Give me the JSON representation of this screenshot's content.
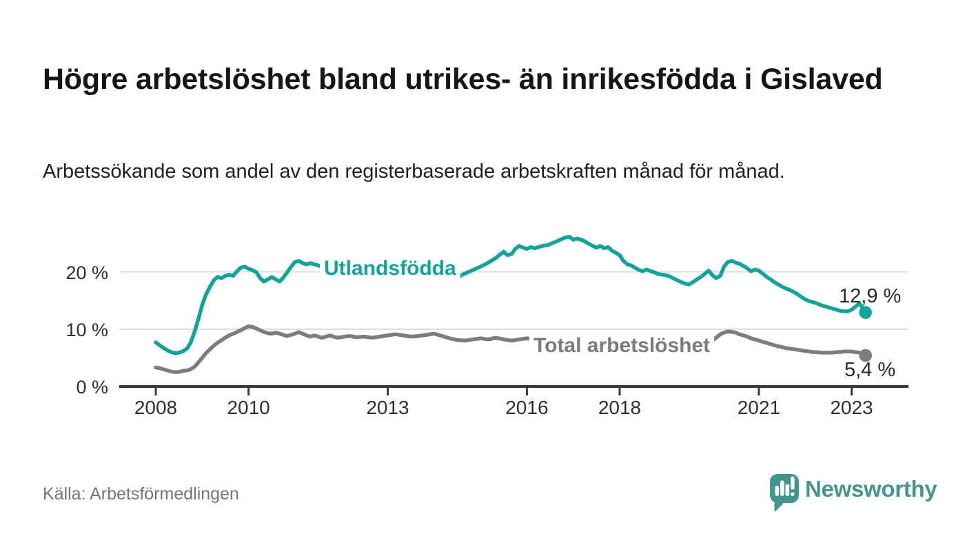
{
  "header": {
    "title": "Högre arbetslöshet bland utrikes- än inrikesfödda i Gislaved",
    "subtitle": "Arbetssökande som andel av den registerbaserade arbetskraften månad för månad."
  },
  "footer": {
    "source": "Källa: Arbetsförmedlingen",
    "brand": {
      "name": "Newsworthy",
      "icon": "speech-bubble-bar-chart-icon",
      "color": "#43968f"
    }
  },
  "colors": {
    "accent_teal": "#12a39a",
    "series_gray": "#7d7d7d",
    "axis": "#3a3a3a",
    "grid": "#dcdcdc",
    "text_dark": "#161616",
    "brand_teal": "#43968f"
  },
  "chart_data": {
    "type": "line",
    "x_unit": "decimal_year",
    "xlim": [
      2007.2,
      2024.2
    ],
    "ylim": [
      0,
      27
    ],
    "grid": "horizontal-only",
    "legend_position": "inline-labels",
    "yticks": [
      {
        "value": 0,
        "label": "0 %"
      },
      {
        "value": 10,
        "label": "10 %"
      },
      {
        "value": 20,
        "label": "20 %"
      }
    ],
    "xticks": [
      {
        "value": 2008,
        "label": "2008"
      },
      {
        "value": 2010,
        "label": "2010"
      },
      {
        "value": 2013,
        "label": "2013"
      },
      {
        "value": 2016,
        "label": "2016"
      },
      {
        "value": 2018,
        "label": "2018"
      },
      {
        "value": 2021,
        "label": "2021"
      },
      {
        "value": 2023,
        "label": "2023"
      }
    ],
    "series": [
      {
        "name": "Utlandsfödda",
        "color": "#12a39a",
        "end_label": "12,9 %",
        "end_value": 12.9,
        "points": [
          [
            2008.0,
            7.7
          ],
          [
            2008.08,
            7.2
          ],
          [
            2008.17,
            6.7
          ],
          [
            2008.25,
            6.3
          ],
          [
            2008.33,
            6.0
          ],
          [
            2008.42,
            5.8
          ],
          [
            2008.5,
            5.9
          ],
          [
            2008.58,
            6.1
          ],
          [
            2008.67,
            6.6
          ],
          [
            2008.75,
            7.6
          ],
          [
            2008.83,
            9.4
          ],
          [
            2008.92,
            11.8
          ],
          [
            2009.0,
            14.2
          ],
          [
            2009.08,
            16.0
          ],
          [
            2009.17,
            17.4
          ],
          [
            2009.25,
            18.5
          ],
          [
            2009.33,
            19.1
          ],
          [
            2009.42,
            18.9
          ],
          [
            2009.5,
            19.3
          ],
          [
            2009.58,
            19.5
          ],
          [
            2009.67,
            19.3
          ],
          [
            2009.75,
            20.1
          ],
          [
            2009.83,
            20.7
          ],
          [
            2009.92,
            20.9
          ],
          [
            2010.0,
            20.5
          ],
          [
            2010.08,
            20.3
          ],
          [
            2010.17,
            19.9
          ],
          [
            2010.25,
            18.9
          ],
          [
            2010.33,
            18.3
          ],
          [
            2010.42,
            18.7
          ],
          [
            2010.5,
            19.1
          ],
          [
            2010.58,
            18.7
          ],
          [
            2010.67,
            18.3
          ],
          [
            2010.75,
            19.0
          ],
          [
            2010.83,
            19.9
          ],
          [
            2010.92,
            20.9
          ],
          [
            2011.0,
            21.7
          ],
          [
            2011.08,
            21.9
          ],
          [
            2011.17,
            21.5
          ],
          [
            2011.25,
            21.3
          ],
          [
            2011.33,
            21.5
          ],
          [
            2011.42,
            21.3
          ],
          [
            2011.5,
            21.1
          ],
          [
            2011.58,
            20.9
          ],
          [
            2011.67,
            21.0
          ],
          [
            2011.75,
            20.9
          ],
          [
            2012.0,
            20.6
          ],
          [
            2012.25,
            20.8
          ],
          [
            2012.5,
            20.4
          ],
          [
            2012.75,
            20.6
          ],
          [
            2013.0,
            20.3
          ],
          [
            2013.25,
            20.5
          ],
          [
            2013.5,
            20.2
          ],
          [
            2013.75,
            20.3
          ],
          [
            2014.0,
            20.0
          ],
          [
            2014.17,
            19.6
          ],
          [
            2014.33,
            19.1
          ],
          [
            2014.5,
            18.7
          ],
          [
            2014.58,
            19.4
          ],
          [
            2014.67,
            19.7
          ],
          [
            2014.75,
            20.0
          ],
          [
            2014.83,
            20.3
          ],
          [
            2014.92,
            20.6
          ],
          [
            2015.0,
            20.9
          ],
          [
            2015.08,
            21.2
          ],
          [
            2015.17,
            21.6
          ],
          [
            2015.25,
            22.0
          ],
          [
            2015.33,
            22.4
          ],
          [
            2015.42,
            23.0
          ],
          [
            2015.5,
            23.5
          ],
          [
            2015.58,
            22.9
          ],
          [
            2015.67,
            23.1
          ],
          [
            2015.75,
            24.0
          ],
          [
            2015.83,
            24.5
          ],
          [
            2015.92,
            24.2
          ],
          [
            2016.0,
            24.0
          ],
          [
            2016.08,
            24.3
          ],
          [
            2016.17,
            24.1
          ],
          [
            2016.25,
            24.3
          ],
          [
            2016.33,
            24.5
          ],
          [
            2016.42,
            24.6
          ],
          [
            2016.5,
            24.8
          ],
          [
            2016.58,
            25.1
          ],
          [
            2016.67,
            25.4
          ],
          [
            2016.75,
            25.7
          ],
          [
            2016.83,
            26.0
          ],
          [
            2016.92,
            26.1
          ],
          [
            2017.0,
            25.6
          ],
          [
            2017.08,
            25.8
          ],
          [
            2017.17,
            25.6
          ],
          [
            2017.25,
            25.3
          ],
          [
            2017.33,
            24.9
          ],
          [
            2017.42,
            24.5
          ],
          [
            2017.5,
            24.2
          ],
          [
            2017.58,
            24.5
          ],
          [
            2017.67,
            24.1
          ],
          [
            2017.75,
            24.3
          ],
          [
            2017.83,
            23.7
          ],
          [
            2017.92,
            23.3
          ],
          [
            2018.0,
            22.9
          ],
          [
            2018.08,
            21.9
          ],
          [
            2018.17,
            21.3
          ],
          [
            2018.25,
            21.1
          ],
          [
            2018.33,
            20.7
          ],
          [
            2018.42,
            20.3
          ],
          [
            2018.5,
            20.1
          ],
          [
            2018.58,
            20.4
          ],
          [
            2018.67,
            20.1
          ],
          [
            2018.75,
            19.9
          ],
          [
            2018.83,
            19.6
          ],
          [
            2018.92,
            19.5
          ],
          [
            2019.0,
            19.4
          ],
          [
            2019.08,
            19.2
          ],
          [
            2019.17,
            18.8
          ],
          [
            2019.25,
            18.5
          ],
          [
            2019.33,
            18.2
          ],
          [
            2019.42,
            17.9
          ],
          [
            2019.5,
            17.8
          ],
          [
            2019.58,
            18.2
          ],
          [
            2019.67,
            18.7
          ],
          [
            2019.75,
            19.1
          ],
          [
            2019.83,
            19.6
          ],
          [
            2019.92,
            20.2
          ],
          [
            2020.0,
            19.4
          ],
          [
            2020.08,
            18.9
          ],
          [
            2020.17,
            19.3
          ],
          [
            2020.25,
            20.9
          ],
          [
            2020.33,
            21.7
          ],
          [
            2020.42,
            21.9
          ],
          [
            2020.5,
            21.6
          ],
          [
            2020.58,
            21.4
          ],
          [
            2020.67,
            21.0
          ],
          [
            2020.75,
            20.6
          ],
          [
            2020.83,
            20.1
          ],
          [
            2020.92,
            20.4
          ],
          [
            2021.0,
            20.2
          ],
          [
            2021.08,
            19.7
          ],
          [
            2021.17,
            19.1
          ],
          [
            2021.25,
            18.7
          ],
          [
            2021.33,
            18.2
          ],
          [
            2021.42,
            17.8
          ],
          [
            2021.5,
            17.4
          ],
          [
            2021.58,
            17.1
          ],
          [
            2021.67,
            16.8
          ],
          [
            2021.75,
            16.5
          ],
          [
            2021.83,
            16.1
          ],
          [
            2021.92,
            15.6
          ],
          [
            2022.0,
            15.2
          ],
          [
            2022.08,
            14.9
          ],
          [
            2022.17,
            14.7
          ],
          [
            2022.25,
            14.5
          ],
          [
            2022.33,
            14.2
          ],
          [
            2022.42,
            14.0
          ],
          [
            2022.5,
            13.8
          ],
          [
            2022.58,
            13.6
          ],
          [
            2022.67,
            13.4
          ],
          [
            2022.75,
            13.2
          ],
          [
            2022.83,
            13.1
          ],
          [
            2022.92,
            13.1
          ],
          [
            2023.0,
            13.4
          ],
          [
            2023.08,
            13.9
          ],
          [
            2023.17,
            14.5
          ],
          [
            2023.3,
            12.9
          ]
        ]
      },
      {
        "name": "Total arbetslöshet",
        "color": "#7d7d7d",
        "end_label": "5,4 %",
        "end_value": 5.4,
        "points": [
          [
            2008.0,
            3.3
          ],
          [
            2008.08,
            3.2
          ],
          [
            2008.17,
            3.0
          ],
          [
            2008.25,
            2.8
          ],
          [
            2008.33,
            2.6
          ],
          [
            2008.42,
            2.5
          ],
          [
            2008.5,
            2.55
          ],
          [
            2008.58,
            2.7
          ],
          [
            2008.67,
            2.8
          ],
          [
            2008.75,
            3.0
          ],
          [
            2008.83,
            3.4
          ],
          [
            2008.92,
            4.2
          ],
          [
            2009.0,
            5.0
          ],
          [
            2009.08,
            5.8
          ],
          [
            2009.17,
            6.5
          ],
          [
            2009.25,
            7.1
          ],
          [
            2009.33,
            7.6
          ],
          [
            2009.42,
            8.1
          ],
          [
            2009.5,
            8.5
          ],
          [
            2009.58,
            8.9
          ],
          [
            2009.67,
            9.2
          ],
          [
            2009.75,
            9.5
          ],
          [
            2009.83,
            9.8
          ],
          [
            2009.92,
            10.2
          ],
          [
            2010.0,
            10.5
          ],
          [
            2010.08,
            10.4
          ],
          [
            2010.17,
            10.1
          ],
          [
            2010.25,
            9.8
          ],
          [
            2010.33,
            9.5
          ],
          [
            2010.42,
            9.3
          ],
          [
            2010.5,
            9.2
          ],
          [
            2010.58,
            9.4
          ],
          [
            2010.67,
            9.2
          ],
          [
            2010.75,
            9.0
          ],
          [
            2010.83,
            8.8
          ],
          [
            2010.92,
            9.0
          ],
          [
            2011.0,
            9.2
          ],
          [
            2011.08,
            9.5
          ],
          [
            2011.17,
            9.2
          ],
          [
            2011.25,
            8.9
          ],
          [
            2011.33,
            8.7
          ],
          [
            2011.42,
            8.9
          ],
          [
            2011.5,
            8.7
          ],
          [
            2011.58,
            8.5
          ],
          [
            2011.67,
            8.7
          ],
          [
            2011.75,
            8.9
          ],
          [
            2011.83,
            8.7
          ],
          [
            2011.92,
            8.5
          ],
          [
            2012.0,
            8.6
          ],
          [
            2012.17,
            8.8
          ],
          [
            2012.33,
            8.6
          ],
          [
            2012.5,
            8.7
          ],
          [
            2012.67,
            8.5
          ],
          [
            2012.83,
            8.7
          ],
          [
            2013.0,
            8.9
          ],
          [
            2013.17,
            9.1
          ],
          [
            2013.33,
            8.9
          ],
          [
            2013.5,
            8.7
          ],
          [
            2013.67,
            8.8
          ],
          [
            2013.83,
            9.0
          ],
          [
            2014.0,
            9.2
          ],
          [
            2014.17,
            8.8
          ],
          [
            2014.33,
            8.4
          ],
          [
            2014.5,
            8.1
          ],
          [
            2014.67,
            8.0
          ],
          [
            2014.83,
            8.2
          ],
          [
            2015.0,
            8.4
          ],
          [
            2015.17,
            8.2
          ],
          [
            2015.33,
            8.5
          ],
          [
            2015.5,
            8.2
          ],
          [
            2015.67,
            8.0
          ],
          [
            2015.83,
            8.2
          ],
          [
            2016.0,
            8.4
          ],
          [
            2016.17,
            8.2
          ],
          [
            2016.33,
            8.4
          ],
          [
            2016.5,
            8.3
          ],
          [
            2016.67,
            8.2
          ],
          [
            2017.0,
            8.1
          ],
          [
            2017.33,
            8.0
          ],
          [
            2017.67,
            7.8
          ],
          [
            2018.0,
            7.8
          ],
          [
            2018.33,
            7.6
          ],
          [
            2018.67,
            7.5
          ],
          [
            2019.0,
            7.4
          ],
          [
            2019.33,
            7.3
          ],
          [
            2019.67,
            7.3
          ],
          [
            2019.92,
            7.6
          ],
          [
            2020.08,
            8.5
          ],
          [
            2020.17,
            9.1
          ],
          [
            2020.25,
            9.4
          ],
          [
            2020.33,
            9.6
          ],
          [
            2020.42,
            9.5
          ],
          [
            2020.5,
            9.4
          ],
          [
            2020.58,
            9.1
          ],
          [
            2020.67,
            8.9
          ],
          [
            2020.75,
            8.7
          ],
          [
            2020.83,
            8.4
          ],
          [
            2020.92,
            8.2
          ],
          [
            2021.0,
            8.0
          ],
          [
            2021.08,
            7.8
          ],
          [
            2021.17,
            7.6
          ],
          [
            2021.25,
            7.4
          ],
          [
            2021.33,
            7.2
          ],
          [
            2021.42,
            7.0
          ],
          [
            2021.5,
            6.9
          ],
          [
            2021.58,
            6.7
          ],
          [
            2021.67,
            6.6
          ],
          [
            2021.75,
            6.5
          ],
          [
            2021.83,
            6.4
          ],
          [
            2021.92,
            6.3
          ],
          [
            2022.0,
            6.2
          ],
          [
            2022.08,
            6.1
          ],
          [
            2022.17,
            6.0
          ],
          [
            2022.25,
            6.0
          ],
          [
            2022.33,
            5.9
          ],
          [
            2022.42,
            5.9
          ],
          [
            2022.5,
            5.9
          ],
          [
            2022.58,
            5.9
          ],
          [
            2022.67,
            6.0
          ],
          [
            2022.75,
            6.0
          ],
          [
            2022.83,
            6.1
          ],
          [
            2022.92,
            6.1
          ],
          [
            2023.0,
            6.1
          ],
          [
            2023.08,
            6.0
          ],
          [
            2023.17,
            5.9
          ],
          [
            2023.3,
            5.4
          ]
        ]
      }
    ]
  }
}
